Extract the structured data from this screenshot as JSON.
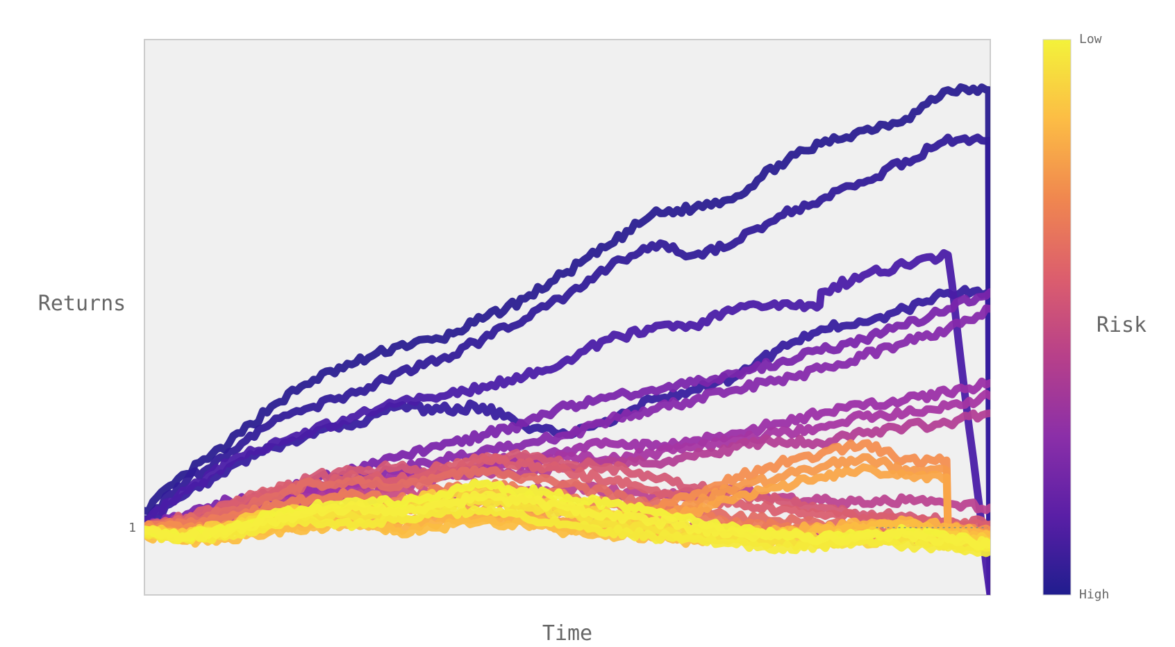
{
  "chart_data": {
    "type": "line",
    "title": "",
    "xlabel": "Time",
    "ylabel": "Returns",
    "yticks": [
      {
        "value": 1,
        "label": "1"
      }
    ],
    "ylim": [
      0.6,
      3.9
    ],
    "x": [
      0,
      50,
      100,
      150,
      200,
      250,
      300,
      350,
      400,
      450,
      500,
      550,
      600,
      650,
      700,
      750,
      800,
      850,
      900,
      950,
      1000
    ],
    "grid": false,
    "reference_line": {
      "y": 1,
      "style": "dotted",
      "visible_x_from": 865
    },
    "colorbar": {
      "label": "Risk",
      "top_label": "Low",
      "bottom_label": "High",
      "colors": [
        "#f3f23a",
        "#fcbd45",
        "#f0874f",
        "#dc5e6d",
        "#b7408a",
        "#8b2fa8",
        "#5a1fa6",
        "#201d8e"
      ]
    },
    "series": [
      {
        "risk": 0.98,
        "color": "#2a1d90",
        "values": [
          1.1,
          1.32,
          1.5,
          1.72,
          1.88,
          1.98,
          2.08,
          2.12,
          2.24,
          2.36,
          2.52,
          2.68,
          2.86,
          2.9,
          2.97,
          3.16,
          3.28,
          3.36,
          3.43,
          3.6,
          0.6
        ],
        "drop_at": 1000
      },
      {
        "risk": 0.96,
        "color": "#311b98",
        "values": [
          1.05,
          1.28,
          1.45,
          1.62,
          1.72,
          1.8,
          1.92,
          2.0,
          2.12,
          2.24,
          2.38,
          2.55,
          2.68,
          2.62,
          2.7,
          2.85,
          2.95,
          3.05,
          3.18,
          3.3,
          0.6
        ],
        "drop_at": 1000
      },
      {
        "risk": 0.95,
        "color": "#371d9e",
        "values": [
          1.02,
          1.2,
          1.36,
          1.48,
          1.55,
          1.62,
          1.72,
          1.7,
          1.72,
          1.6,
          1.55,
          1.62,
          1.76,
          1.82,
          1.9,
          2.06,
          2.18,
          2.22,
          2.3,
          2.4,
          0.6
        ],
        "drop_at": 1000
      },
      {
        "risk": 0.92,
        "color": "#4a1ca6",
        "values": [
          1.04,
          1.22,
          1.38,
          1.5,
          1.58,
          1.66,
          1.74,
          1.78,
          1.84,
          1.9,
          2.0,
          2.12,
          2.18,
          2.2,
          2.3,
          2.32,
          2.4,
          2.5,
          2.56,
          2.62,
          0.6
        ],
        "drop_at": 800
      },
      {
        "risk": 0.82,
        "color": "#7a25ab",
        "values": [
          1.0,
          1.08,
          1.16,
          1.2,
          1.28,
          1.34,
          1.42,
          1.48,
          1.55,
          1.62,
          1.72,
          1.78,
          1.82,
          1.86,
          1.92,
          1.98,
          2.05,
          2.12,
          2.2,
          2.3,
          2.4
        ]
      },
      {
        "risk": 0.8,
        "color": "#8629ab",
        "values": [
          1.0,
          1.06,
          1.12,
          1.18,
          1.22,
          1.28,
          1.34,
          1.4,
          1.46,
          1.5,
          1.55,
          1.64,
          1.7,
          1.76,
          1.82,
          1.88,
          1.94,
          2.02,
          2.1,
          2.18,
          2.3
        ]
      },
      {
        "risk": 0.75,
        "color": "#9b2fa6",
        "values": [
          1.0,
          1.04,
          1.1,
          1.16,
          1.2,
          1.26,
          1.3,
          1.34,
          1.38,
          1.42,
          1.46,
          1.5,
          1.48,
          1.52,
          1.56,
          1.62,
          1.68,
          1.72,
          1.76,
          1.8,
          1.86
        ]
      },
      {
        "risk": 0.72,
        "color": "#a535a2",
        "values": [
          1.0,
          1.02,
          1.06,
          1.12,
          1.18,
          1.24,
          1.28,
          1.32,
          1.36,
          1.38,
          1.42,
          1.4,
          1.44,
          1.48,
          1.52,
          1.56,
          1.6,
          1.66,
          1.68,
          1.72,
          1.78
        ]
      },
      {
        "risk": 0.68,
        "color": "#b23e95",
        "values": [
          1.0,
          1.04,
          1.08,
          1.12,
          1.16,
          1.2,
          1.24,
          1.3,
          1.34,
          1.32,
          1.36,
          1.4,
          1.38,
          1.42,
          1.48,
          1.52,
          1.5,
          1.56,
          1.6,
          1.62,
          1.68
        ]
      },
      {
        "risk": 0.65,
        "color": "#bb4390",
        "values": [
          1.0,
          1.0,
          1.04,
          1.08,
          1.1,
          1.14,
          1.12,
          1.16,
          1.2,
          1.22,
          1.24,
          1.22,
          1.18,
          1.2,
          1.22,
          1.18,
          1.16,
          1.14,
          1.16,
          1.14,
          1.12
        ]
      },
      {
        "risk": 0.6,
        "color": "#c84d84",
        "values": [
          1.0,
          1.02,
          1.06,
          1.1,
          1.14,
          1.18,
          1.2,
          1.22,
          1.18,
          1.14,
          1.1,
          1.06,
          1.04,
          1.02,
          1.0,
          0.98,
          0.96,
          0.95,
          0.94,
          0.92,
          0.9
        ]
      },
      {
        "risk": 0.56,
        "color": "#d35a76",
        "values": [
          1.0,
          1.04,
          1.12,
          1.2,
          1.3,
          1.34,
          1.36,
          1.32,
          1.4,
          1.44,
          1.38,
          1.36,
          1.3,
          1.24,
          1.2,
          1.16,
          1.12,
          1.08,
          1.06,
          1.04,
          1.02
        ]
      },
      {
        "risk": 0.54,
        "color": "#d95f70",
        "values": [
          1.0,
          1.06,
          1.14,
          1.22,
          1.26,
          1.3,
          1.28,
          1.36,
          1.42,
          1.38,
          1.34,
          1.28,
          1.22,
          1.18,
          1.14,
          1.1,
          1.08,
          1.06,
          1.04,
          1.02,
          1.0
        ]
      },
      {
        "risk": 0.5,
        "color": "#e26d65",
        "values": [
          1.0,
          1.04,
          1.1,
          1.18,
          1.26,
          1.28,
          1.24,
          1.3,
          1.34,
          1.3,
          1.26,
          1.2,
          1.14,
          1.1,
          1.06,
          1.04,
          1.02,
          1.0,
          0.98,
          0.96,
          0.94
        ]
      },
      {
        "risk": 0.46,
        "color": "#ec7c5a",
        "values": [
          1.0,
          1.02,
          1.06,
          1.12,
          1.18,
          1.2,
          1.16,
          1.22,
          1.26,
          1.22,
          1.18,
          1.14,
          1.1,
          1.06,
          1.04,
          1.0,
          0.98,
          0.96,
          0.94,
          0.92,
          0.9
        ]
      },
      {
        "risk": 0.4,
        "color": "#f38e50",
        "values": [
          1.0,
          1.0,
          1.02,
          1.06,
          1.1,
          1.12,
          1.1,
          1.14,
          1.16,
          1.14,
          1.1,
          1.06,
          1.1,
          1.2,
          1.3,
          1.38,
          1.44,
          1.5,
          1.4,
          1.0,
          0.98
        ],
        "drop_at": 950
      },
      {
        "risk": 0.38,
        "color": "#f6994c",
        "values": [
          0.98,
          0.96,
          1.0,
          1.04,
          1.06,
          1.08,
          1.04,
          1.08,
          1.1,
          1.08,
          1.04,
          1.02,
          1.06,
          1.14,
          1.24,
          1.3,
          1.36,
          1.42,
          1.34,
          0.98,
          0.96
        ],
        "drop_at": 950
      },
      {
        "risk": 0.34,
        "color": "#f9a548",
        "values": [
          0.98,
          0.95,
          0.98,
          1.02,
          1.04,
          1.06,
          1.02,
          1.06,
          1.08,
          1.06,
          1.02,
          1.0,
          1.04,
          1.1,
          1.18,
          1.24,
          1.3,
          1.36,
          1.3,
          0.97,
          0.95
        ],
        "drop_at": 950
      },
      {
        "risk": 0.3,
        "color": "#fbb244",
        "values": [
          0.97,
          0.94,
          0.96,
          1.0,
          1.02,
          1.04,
          1.0,
          1.04,
          1.06,
          1.04,
          1.0,
          0.98,
          0.96,
          0.94,
          0.96,
          0.98,
          1.0,
          1.02,
          1.04,
          1.0,
          0.96
        ]
      },
      {
        "risk": 0.26,
        "color": "#fbbd41",
        "values": [
          0.96,
          0.92,
          0.94,
          0.98,
          1.0,
          1.02,
          0.98,
          1.0,
          1.04,
          1.02,
          0.98,
          0.96,
          0.94,
          0.92,
          0.94,
          0.96,
          0.98,
          1.0,
          1.02,
          0.98,
          0.94
        ]
      },
      {
        "risk": 0.22,
        "color": "#facb3e",
        "values": [
          0.98,
          0.96,
          1.02,
          1.08,
          1.12,
          1.1,
          1.14,
          1.2,
          1.22,
          1.18,
          1.14,
          1.08,
          1.02,
          1.0,
          0.98,
          0.96,
          0.94,
          0.96,
          0.98,
          0.96,
          0.92
        ]
      },
      {
        "risk": 0.18,
        "color": "#f8d63c",
        "values": [
          0.97,
          0.95,
          1.0,
          1.06,
          1.1,
          1.08,
          1.12,
          1.16,
          1.18,
          1.14,
          1.1,
          1.04,
          1.0,
          0.96,
          0.94,
          0.92,
          0.9,
          0.92,
          0.94,
          0.92,
          0.9
        ]
      },
      {
        "risk": 0.14,
        "color": "#f6e13a",
        "values": [
          0.96,
          0.94,
          0.98,
          1.04,
          1.08,
          1.06,
          1.1,
          1.14,
          1.16,
          1.12,
          1.08,
          1.02,
          0.98,
          0.95,
          0.93,
          0.91,
          0.9,
          0.92,
          0.94,
          0.9,
          0.88
        ]
      },
      {
        "risk": 0.1,
        "color": "#f4ea3a",
        "values": [
          0.97,
          0.93,
          0.96,
          1.02,
          1.04,
          1.02,
          1.06,
          1.08,
          1.1,
          1.06,
          1.02,
          0.98,
          0.95,
          0.93,
          0.9,
          0.88,
          0.9,
          0.92,
          0.9,
          0.88,
          0.86
        ]
      },
      {
        "risk": 0.06,
        "color": "#f3f23a",
        "values": [
          0.99,
          0.95,
          1.0,
          1.08,
          1.12,
          1.16,
          1.14,
          1.2,
          1.26,
          1.22,
          1.18,
          1.14,
          1.1,
          1.04,
          1.0,
          0.96,
          0.94,
          0.96,
          0.98,
          0.94,
          0.9
        ]
      },
      {
        "risk": 0.03,
        "color": "#f5ee3d",
        "values": [
          0.98,
          0.94,
          0.98,
          1.04,
          1.1,
          1.12,
          1.1,
          1.14,
          1.18,
          1.16,
          1.12,
          1.08,
          1.04,
          1.0,
          0.97,
          0.95,
          0.93,
          0.95,
          0.96,
          0.93,
          0.9
        ]
      }
    ]
  }
}
